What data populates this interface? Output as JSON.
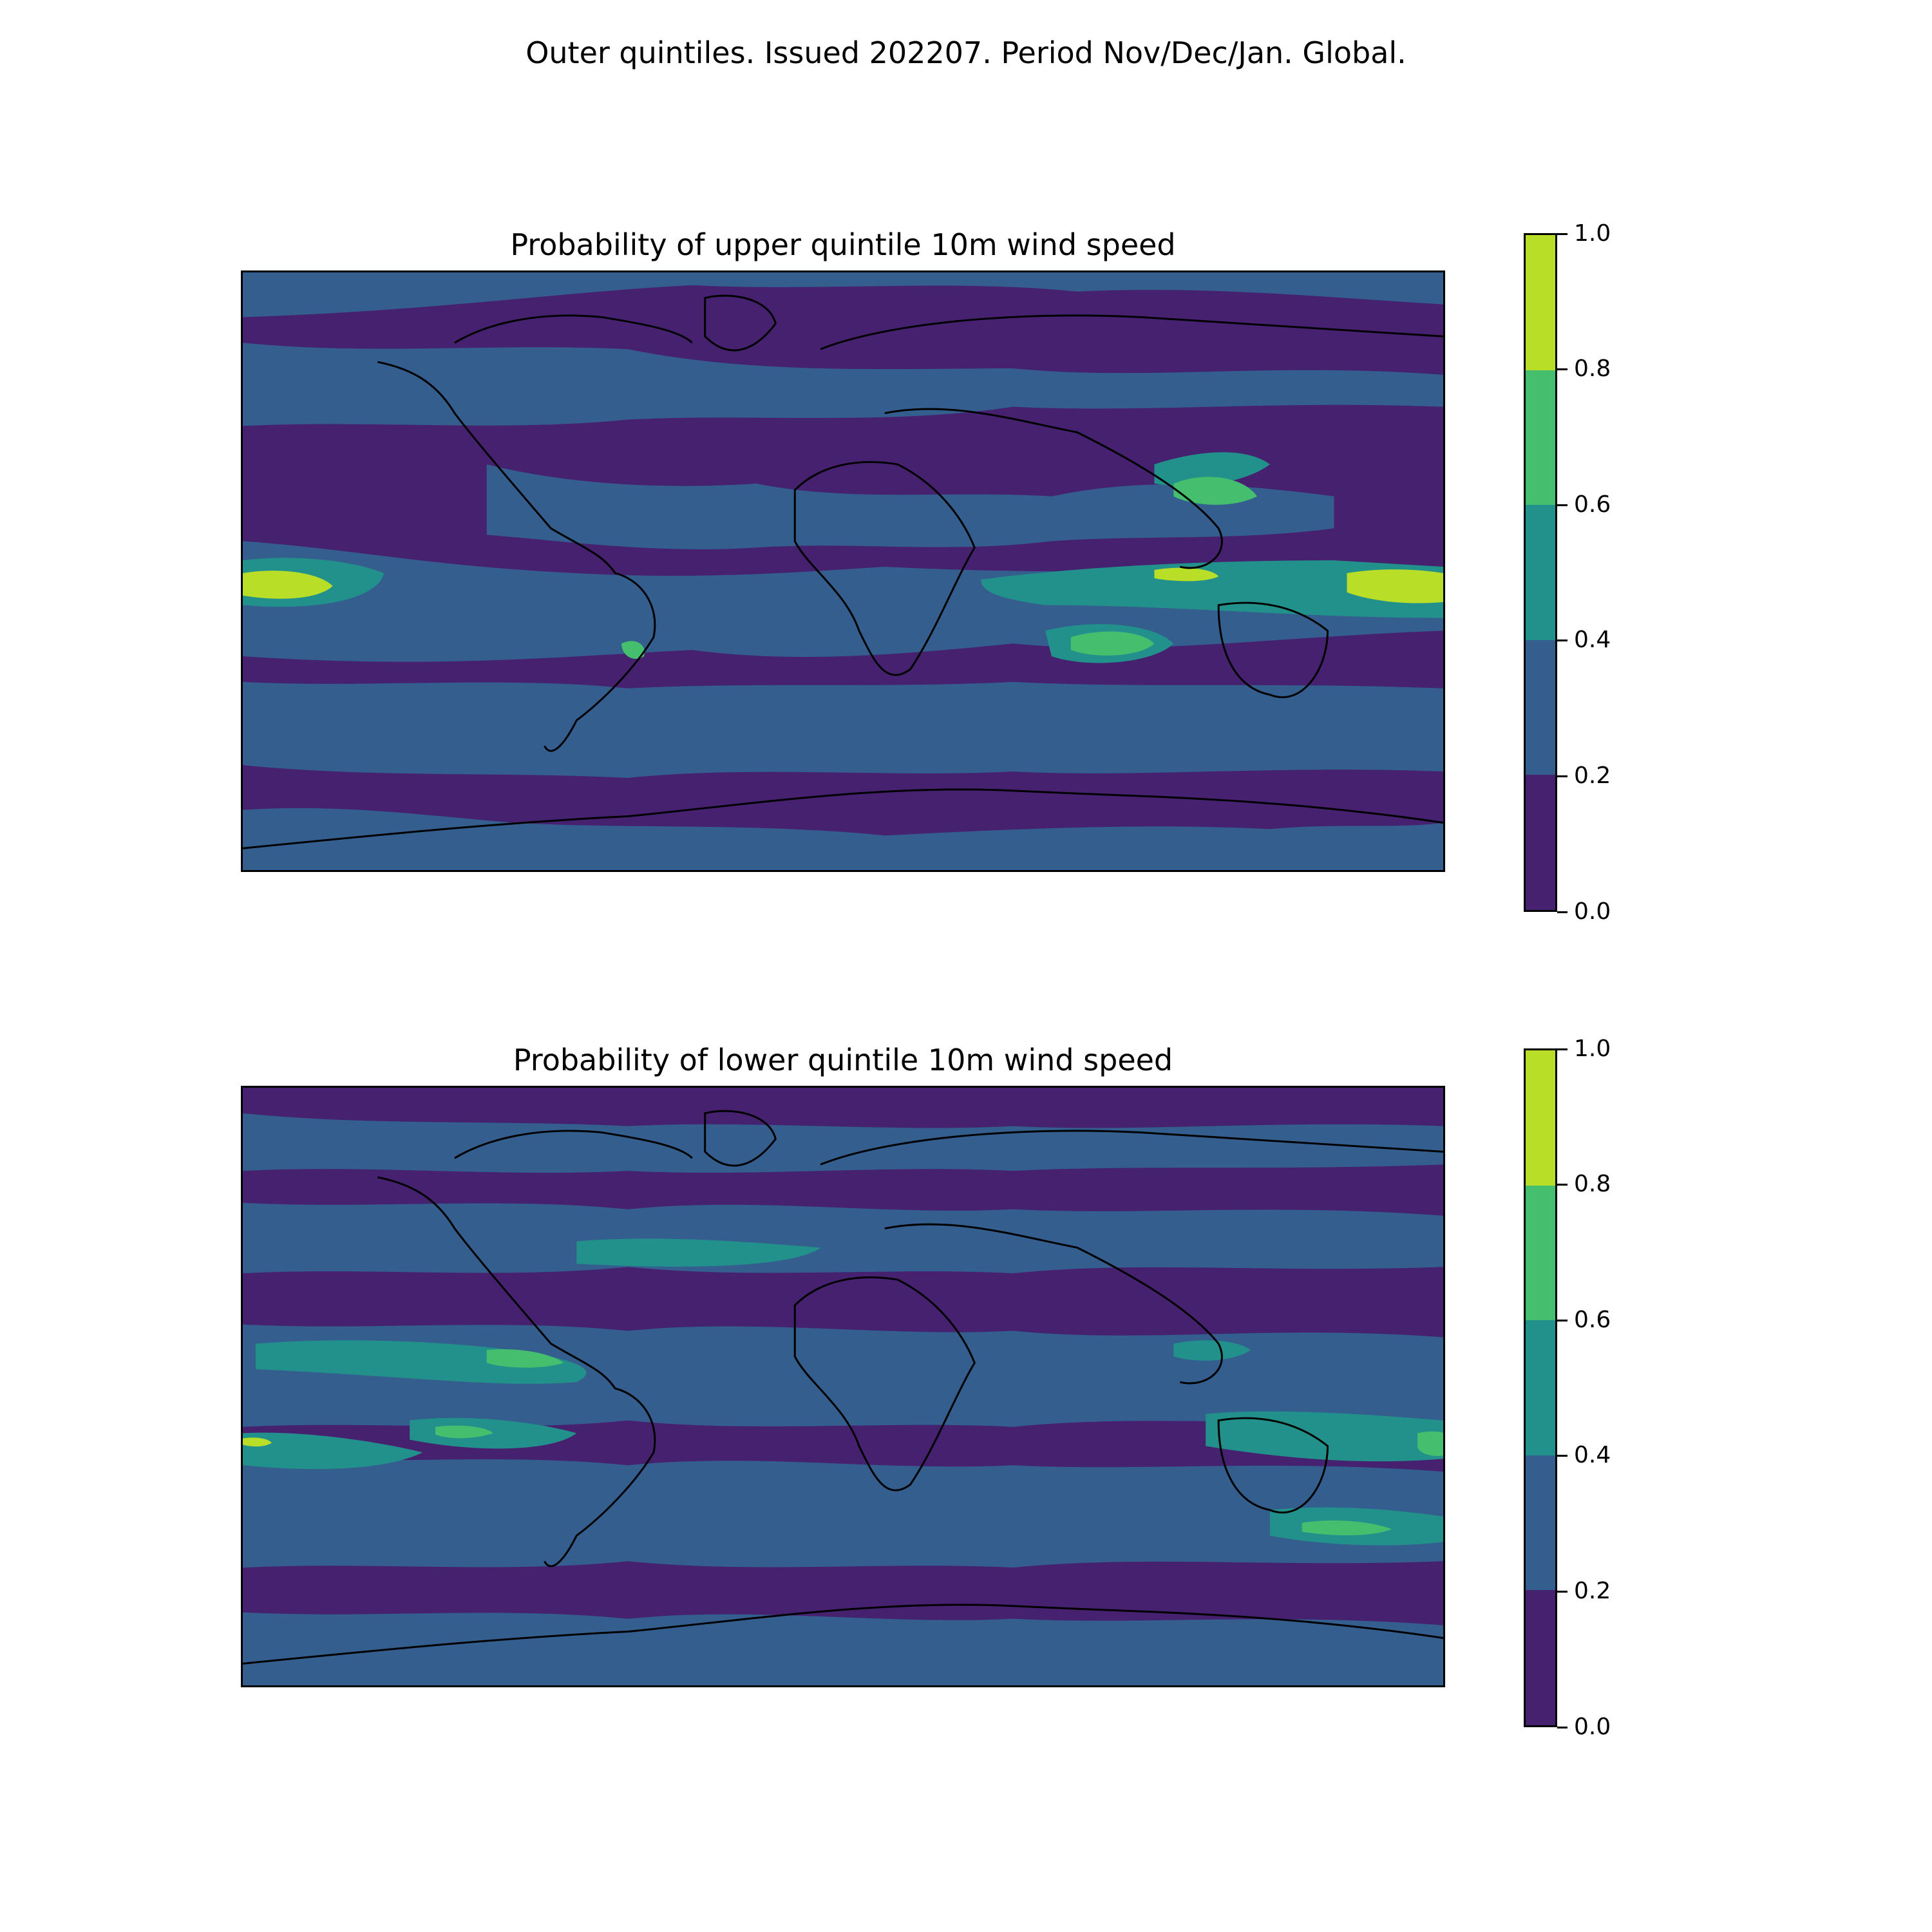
{
  "suptitle": "Outer quintiles. Issued 202207. Period Nov/Dec/Jan. Global.",
  "panels": [
    {
      "title": "Probability of upper quintile 10m wind speed"
    },
    {
      "title": "Probability of lower quintile 10m wind speed"
    }
  ],
  "colorbar": {
    "levels": [
      0.0,
      0.2,
      0.4,
      0.6,
      0.8,
      1.0
    ],
    "tick_labels": [
      "0.0",
      "0.2",
      "0.4",
      "0.6",
      "0.8",
      "1.0"
    ],
    "colors": [
      "#46216f",
      "#335e8d",
      "#23918b",
      "#45bf6d",
      "#b9de28"
    ]
  },
  "map": {
    "projection": "PlateCarree",
    "extent_lon": [
      -180,
      180
    ],
    "extent_lat": [
      -90,
      90
    ],
    "coastlines": true,
    "background_level_color": "#46216f"
  }
}
